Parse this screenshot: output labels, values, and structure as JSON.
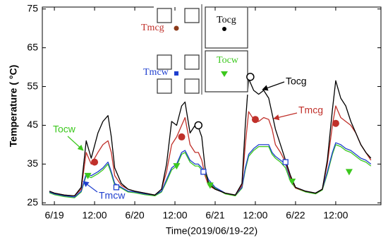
{
  "chart_data": {
    "type": "line",
    "y_label": "Temperature ( °C)",
    "x_label": "Time(2019/06/19-22)",
    "xlim": [
      -3.6,
      97.5
    ],
    "ylim": [
      24.5,
      75.5
    ],
    "yticks": [
      25,
      35,
      45,
      55,
      65,
      75
    ],
    "xticks": [
      {
        "value": 0,
        "label": "6/19"
      },
      {
        "value": 12,
        "label": "12:00"
      },
      {
        "value": 24,
        "label": "6/20"
      },
      {
        "value": 36,
        "label": "12:00"
      },
      {
        "value": 48,
        "label": "6/21"
      },
      {
        "value": 60,
        "label": "12:00"
      },
      {
        "value": 72,
        "label": "6/22"
      },
      {
        "value": 84,
        "label": "12:00"
      }
    ],
    "x": [
      -1.5,
      0,
      3,
      6,
      8,
      9.5,
      11,
      13,
      14.5,
      16,
      17,
      18,
      20,
      22,
      24,
      27,
      30,
      32,
      33.5,
      35,
      36.5,
      38,
      39,
      40.5,
      42,
      43,
      44,
      45,
      46,
      48,
      51,
      54,
      56,
      57,
      58,
      59.5,
      61,
      62.5,
      64,
      65,
      66,
      67.5,
      69,
      70.5,
      72,
      75,
      78,
      80,
      81.5,
      83,
      84,
      85.5,
      87,
      88.5,
      90,
      91.5,
      93,
      94.5
    ],
    "series": [
      {
        "name": "Tocg",
        "color": "#000000",
        "marker": "open-circle",
        "values": [
          28,
          27.5,
          27,
          26.8,
          29,
          41,
          36.5,
          43,
          46,
          47.5,
          42,
          34,
          30,
          28.5,
          28,
          27.5,
          27,
          28.5,
          35,
          46,
          45,
          50,
          51,
          43,
          45,
          44.5,
          42,
          34,
          30,
          28.5,
          27.5,
          27,
          30,
          45,
          57,
          54,
          53,
          54,
          52,
          48,
          44,
          40,
          36,
          32,
          29,
          28,
          27.5,
          28.5,
          36,
          49,
          56.5,
          52,
          50,
          46,
          43,
          40,
          38,
          36.5
        ],
        "marker_x": [
          43,
          58.5
        ],
        "marker_values": [
          45,
          57.5
        ]
      },
      {
        "name": "Tmcg",
        "color": "#c0302a",
        "marker": "filled-circle",
        "values": [
          28,
          27.5,
          27,
          26.8,
          28.5,
          38,
          35,
          38,
          40,
          41,
          38,
          32,
          29.5,
          28.5,
          28,
          27.5,
          27,
          28.5,
          33,
          40,
          42,
          45,
          47,
          40,
          38,
          38,
          36,
          32,
          29.5,
          28.5,
          27.5,
          27,
          29.5,
          40,
          48.5,
          46.5,
          46,
          47,
          46.5,
          44,
          40,
          38,
          35.5,
          31.5,
          28.8,
          28,
          27.5,
          28.5,
          35,
          45,
          50,
          47,
          46,
          45,
          43,
          40,
          38,
          36
        ],
        "marker_x": [
          12,
          38,
          60,
          84
        ],
        "marker_values": [
          35.5,
          42,
          46.5,
          45.5
        ]
      },
      {
        "name": "Tmcw",
        "color": "#1f3fcf",
        "marker": "open-square",
        "values": [
          27.8,
          27.3,
          26.8,
          26.5,
          28,
          32.5,
          32,
          33,
          34,
          35.5,
          33,
          30,
          29,
          28,
          27.8,
          27.3,
          27,
          28,
          31,
          34,
          35,
          38,
          38.5,
          36,
          35,
          35,
          34,
          33,
          31,
          29,
          27.5,
          27,
          29,
          34,
          37.5,
          39,
          40,
          40,
          40,
          38,
          37,
          36,
          35,
          31,
          29,
          28,
          27.5,
          28.5,
          33,
          38,
          40.5,
          40,
          39,
          38.5,
          37.5,
          36.5,
          36,
          35
        ],
        "marker_x": [
          18.5,
          44.5,
          69
        ],
        "marker_values": [
          29,
          33,
          35.5
        ]
      },
      {
        "name": "Tocw",
        "color": "#3cc81e",
        "marker": "triangle",
        "values": [
          27.6,
          27.1,
          26.6,
          26.3,
          27.8,
          32,
          31.5,
          32.5,
          33.5,
          35,
          32.5,
          29.5,
          28.8,
          27.8,
          27.6,
          27.1,
          26.8,
          27.8,
          30.5,
          33.5,
          34.5,
          37.5,
          38,
          35.5,
          34.5,
          34.5,
          33.5,
          32.5,
          30.5,
          28.8,
          27.3,
          26.8,
          28.8,
          33.5,
          37,
          38.5,
          39.5,
          39.5,
          39.5,
          37.5,
          36.5,
          35.5,
          34,
          30.5,
          28.8,
          27.8,
          27.3,
          28.3,
          32.5,
          37.5,
          40,
          39.5,
          38.5,
          38,
          37,
          36,
          35.5,
          34.5
        ],
        "marker_x": [
          10,
          36.5,
          46.5,
          71,
          88
        ],
        "marker_values": [
          32,
          34.5,
          29.5,
          30.5,
          33
        ]
      }
    ]
  }
}
